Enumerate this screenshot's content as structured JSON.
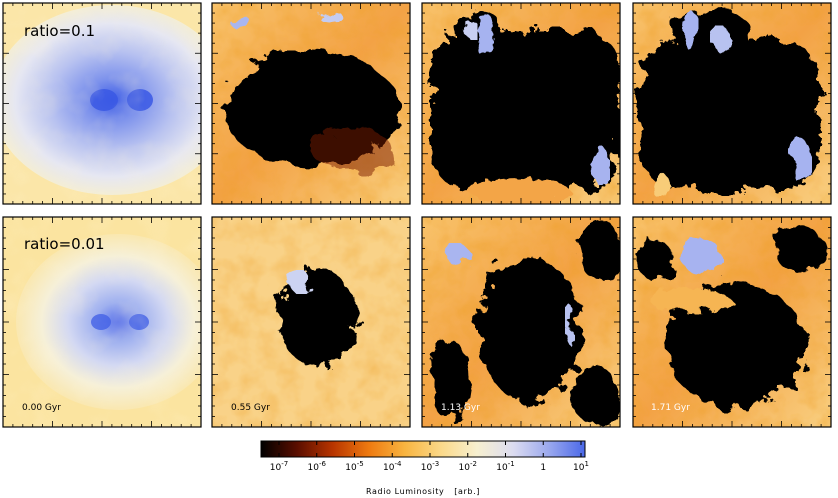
{
  "figure": {
    "rows": [
      {
        "ratio_label": "ratio=0.1"
      },
      {
        "ratio_label": "ratio=0.01"
      }
    ],
    "time_labels": [
      "0.00 Gyr",
      "0.55 Gyr",
      "1.13 Gyr",
      "1.71 Gyr"
    ],
    "colorbar": {
      "tick_labels": [
        {
          "base": "10",
          "exp": "-7"
        },
        {
          "base": "10",
          "exp": "-6"
        },
        {
          "base": "10",
          "exp": "-5"
        },
        {
          "base": "10",
          "exp": "-4"
        },
        {
          "base": "10",
          "exp": "-3"
        },
        {
          "base": "10",
          "exp": "-2"
        },
        {
          "base": "10",
          "exp": "-1"
        },
        {
          "base": "1",
          "exp": ""
        },
        {
          "base": "10",
          "exp": "1"
        }
      ],
      "title": "Radio Luminosity",
      "unit": "[arb.]",
      "scale": "log",
      "colors": [
        "#000000",
        "#5a0e00",
        "#b83500",
        "#ee7a10",
        "#f8b440",
        "#fbd98a",
        "#f7f0d0",
        "#dcdcf0",
        "#9aa8ee",
        "#4a68e8"
      ]
    },
    "panel_style": {
      "hot_colors": [
        "#fbe39a",
        "#f8b85a",
        "#f08a25",
        "#c84a05"
      ],
      "cold_colors": [
        "#eef0f6",
        "#c8cdf2",
        "#8e9ef0",
        "#4a65e6"
      ]
    }
  }
}
